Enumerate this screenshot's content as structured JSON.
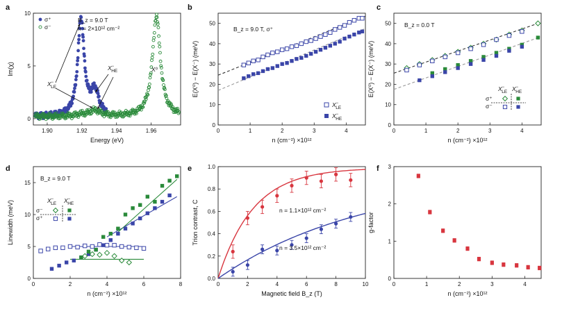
{
  "panel_labels": [
    "a",
    "b",
    "c",
    "d",
    "e",
    "f"
  ],
  "colors": {
    "blue": "#3a45a8",
    "green": "#2a8a3a",
    "red": "#d8363f",
    "gray": "#9a9a9a",
    "dkgreen": "#1f5f2c"
  },
  "chart_data": [
    {
      "id": "a",
      "type": "scatter",
      "xlabel": "Energy (eV)",
      "ylabel": "Im(χ)",
      "xlim": [
        1.892,
        1.977
      ],
      "ylim": [
        -0.6,
        10
      ],
      "xticks": [
        1.9,
        1.92,
        1.94,
        1.96
      ],
      "yticks": [
        0,
        5,
        10
      ],
      "tick_labels_x": [
        "1.90",
        "1.92",
        "1.94",
        "1.96"
      ],
      "tick_labels_y": [
        "0",
        "5",
        "10"
      ],
      "legend": [
        "σ⁺",
        "σ⁻"
      ],
      "annotations": [
        "B_z = 9.0 T",
        "n = 2×10¹² cm⁻²",
        "X⁻_LE",
        "X⁻_HE",
        "X⁰"
      ],
      "series": [
        {
          "name": "σ⁺",
          "color": "blue",
          "peaks": [
            {
              "x0": 1.9195,
              "a": 9.2,
              "g": 0.0022
            },
            {
              "x0": 1.9275,
              "a": 2.3,
              "g": 0.0028
            }
          ],
          "x_range": [
            1.893,
            1.934
          ]
        },
        {
          "name": "σ⁻",
          "color": "green",
          "peaks": [
            {
              "x0": 1.963,
              "a": 9.5,
              "g": 0.0028
            },
            {
              "x0": 1.9275,
              "a": 0.55,
              "g": 0.004
            },
            {
              "x0": 1.9195,
              "a": 0.15,
              "g": 0.003
            }
          ],
          "x_range": [
            1.893,
            1.976
          ]
        }
      ]
    },
    {
      "id": "b",
      "type": "scatter",
      "xlabel": "n (cm⁻²) ×10¹²",
      "ylabel": "E(X⁰) − E(X⁻) (meV)",
      "xlim": [
        0,
        4.6
      ],
      "ylim": [
        0,
        55
      ],
      "xticks": [
        0,
        1,
        2,
        3,
        4
      ],
      "yticks": [
        0,
        10,
        20,
        30,
        40,
        50
      ],
      "tick_labels_x": [
        "0",
        "1",
        "2",
        "3",
        "4"
      ],
      "tick_labels_y": [
        "0",
        "10",
        "20",
        "30",
        "40",
        "50"
      ],
      "annotations": [
        "B_z = 9.0 T, σ⁺"
      ],
      "legend": [
        "X⁻_LE",
        "X⁻_HE"
      ],
      "series": [
        {
          "name": "X⁻_LE",
          "marker": "open-square",
          "color": "blue",
          "x": [
            0.8,
            0.95,
            1.1,
            1.25,
            1.4,
            1.55,
            1.7,
            1.85,
            2.0,
            2.15,
            2.3,
            2.45,
            2.6,
            2.75,
            2.9,
            3.05,
            3.2,
            3.35,
            3.5,
            3.65,
            3.8,
            3.95,
            4.1,
            4.25,
            4.4,
            4.5
          ],
          "y": [
            29.5,
            30.5,
            31.5,
            32.0,
            33.5,
            34.5,
            35.5,
            36.0,
            37.0,
            37.5,
            38.5,
            39.0,
            40.0,
            41.0,
            41.5,
            42.5,
            43.5,
            44.5,
            45.5,
            47.0,
            48.0,
            49.0,
            50.5,
            51.5,
            52.5,
            52.5
          ]
        },
        {
          "name": "X⁻_HE",
          "marker": "filled-square",
          "color": "blue",
          "x": [
            0.8,
            0.95,
            1.1,
            1.25,
            1.4,
            1.55,
            1.7,
            1.85,
            2.0,
            2.15,
            2.3,
            2.45,
            2.6,
            2.75,
            2.9,
            3.05,
            3.2,
            3.35,
            3.5,
            3.65,
            3.8,
            3.95,
            4.1,
            4.25,
            4.4,
            4.5
          ],
          "y": [
            23.0,
            24.0,
            25.0,
            25.5,
            26.5,
            27.5,
            28.0,
            29.0,
            30.0,
            30.5,
            31.5,
            32.5,
            33.0,
            34.0,
            35.0,
            36.0,
            37.0,
            38.0,
            39.0,
            40.0,
            41.0,
            42.5,
            43.5,
            44.5,
            45.5,
            46.0
          ]
        }
      ],
      "fits": [
        {
          "color": "dark",
          "x": [
            0,
            4.6
          ],
          "y": [
            24.5,
            53.5
          ]
        },
        {
          "color": "gray",
          "x": [
            0,
            4.6
          ],
          "y": [
            17.0,
            47.5
          ]
        }
      ]
    },
    {
      "id": "c",
      "type": "scatter",
      "xlabel": "n (cm⁻²) ×10¹²",
      "ylabel": "E(X⁰) − E(X⁻) (meV)",
      "xlim": [
        0,
        4.6
      ],
      "ylim": [
        0,
        55
      ],
      "xticks": [
        0,
        1,
        2,
        3,
        4
      ],
      "yticks": [
        0,
        10,
        20,
        30,
        40,
        50
      ],
      "tick_labels_x": [
        "0",
        "1",
        "2",
        "3",
        "4"
      ],
      "tick_labels_y": [
        "0",
        "10",
        "20",
        "30",
        "40",
        "50"
      ],
      "annotations": [
        "B_z = 0.0 T"
      ],
      "legend_grid": {
        "cols": [
          "X⁻_LE",
          "X⁻_HE"
        ],
        "rows": [
          "σ⁺",
          "σ⁻"
        ]
      },
      "series": [
        {
          "name": "σ⁺ X⁻_LE",
          "marker": "open-diamond",
          "color": "green",
          "x": [
            0.4,
            0.8,
            1.2,
            1.6,
            2.0,
            2.4,
            2.8,
            3.2,
            3.6,
            4.0,
            4.5
          ],
          "y": [
            28.0,
            30.0,
            32.0,
            34.0,
            36.0,
            38.0,
            40.0,
            42.0,
            44.5,
            46.5,
            50.0
          ]
        },
        {
          "name": "σ⁻ X⁻_LE",
          "marker": "open-square",
          "color": "blue",
          "x": [
            0.4,
            0.8,
            1.2,
            1.6,
            2.0,
            2.4,
            2.8,
            3.2,
            3.6,
            4.0
          ],
          "y": [
            27.0,
            29.5,
            31.5,
            33.5,
            35.5,
            37.5,
            39.5,
            42.0,
            44.0,
            46.0
          ]
        },
        {
          "name": "σ⁺ X⁻_HE",
          "marker": "filled-square",
          "color": "green",
          "x": [
            1.2,
            1.6,
            2.0,
            2.4,
            2.8,
            3.2,
            3.6,
            4.0,
            4.5
          ],
          "y": [
            25.5,
            27.5,
            29.5,
            31.5,
            33.5,
            35.5,
            37.5,
            39.5,
            43.0
          ]
        },
        {
          "name": "σ⁻ X⁻_HE",
          "marker": "filled-square",
          "color": "blue",
          "x": [
            0.8,
            1.2,
            1.6,
            2.0,
            2.4,
            2.8,
            3.2,
            3.6,
            4.0
          ],
          "y": [
            22.0,
            24.0,
            26.0,
            28.0,
            30.0,
            32.0,
            34.0,
            36.5,
            38.5
          ]
        }
      ],
      "fits": [
        {
          "color": "dark",
          "x": [
            0,
            4.6
          ],
          "y": [
            25.5,
            50.5
          ]
        },
        {
          "color": "gray",
          "x": [
            0,
            4.6
          ],
          "y": [
            17.5,
            43.5
          ]
        }
      ]
    },
    {
      "id": "d",
      "type": "scatter",
      "xlabel": "n (cm⁻²) ×10¹²",
      "ylabel": "Linewidth (meV)",
      "xlim": [
        0,
        8
      ],
      "ylim": [
        0,
        17.5
      ],
      "xticks": [
        0,
        2,
        4,
        6,
        8
      ],
      "yticks": [
        0,
        5,
        10,
        15
      ],
      "tick_labels_x": [
        "0",
        "2",
        "4",
        "6",
        "8"
      ],
      "tick_labels_y": [
        "0",
        "5",
        "10",
        "15"
      ],
      "annotations": [
        "B_z = 9.0 T"
      ],
      "legend_grid": {
        "cols": [
          "X⁻_LE",
          "X⁻_HE"
        ],
        "rows": [
          "σ⁻",
          "σ⁺"
        ]
      },
      "series": [
        {
          "name": "σ⁺ X⁻_LE",
          "marker": "open-square",
          "color": "blue",
          "x": [
            0.4,
            0.8,
            1.2,
            1.6,
            2.0,
            2.4,
            2.8,
            3.2,
            3.6,
            4.0,
            4.4,
            4.8,
            5.2,
            5.6,
            6.0
          ],
          "y": [
            4.3,
            4.6,
            4.8,
            4.8,
            5.0,
            4.9,
            5.1,
            5.0,
            5.3,
            5.2,
            5.2,
            5.0,
            4.9,
            4.8,
            4.7
          ]
        },
        {
          "name": "σ⁺ X⁻_HE",
          "marker": "filled-square",
          "color": "blue",
          "x": [
            1.0,
            1.4,
            1.8,
            2.2,
            2.6,
            3.0,
            3.4,
            3.8,
            4.2,
            4.6,
            5.0,
            5.4,
            5.8,
            6.2,
            6.6,
            7.0,
            7.4
          ],
          "y": [
            1.5,
            2.0,
            2.5,
            2.8,
            3.3,
            3.8,
            4.5,
            5.2,
            6.0,
            7.0,
            7.8,
            8.6,
            9.4,
            10.2,
            11.0,
            12.0,
            13.0
          ]
        },
        {
          "name": "σ⁻ X⁻_LE",
          "marker": "open-diamond",
          "color": "green",
          "x": [
            2.8,
            3.2,
            3.6,
            4.0,
            4.4,
            4.8,
            5.2
          ],
          "y": [
            3.5,
            3.8,
            3.7,
            4.0,
            3.5,
            2.8,
            2.5
          ]
        },
        {
          "name": "σ⁻ X⁻_HE",
          "marker": "filled-square",
          "color": "green",
          "x": [
            2.6,
            3.0,
            3.4,
            3.8,
            4.2,
            4.6,
            5.0,
            5.4,
            5.8,
            6.2,
            6.6,
            7.0,
            7.4,
            7.8
          ],
          "y": [
            3.3,
            4.2,
            4.5,
            6.5,
            7.0,
            7.8,
            10.0,
            11.0,
            11.5,
            12.8,
            12.0,
            14.5,
            15.3,
            16.0
          ]
        }
      ],
      "fits": [
        {
          "color": "blue",
          "x": [
            2.0,
            6.0
          ],
          "y": [
            5.0,
            5.0
          ]
        },
        {
          "color": "blue",
          "x": [
            4.0,
            7.8
          ],
          "y": [
            6.5,
            12.8
          ]
        },
        {
          "color": "green",
          "x": [
            2.0,
            6.0
          ],
          "y": [
            3.0,
            3.0
          ]
        },
        {
          "color": "green",
          "x": [
            4.5,
            7.8
          ],
          "y": [
            7.0,
            15.5
          ]
        }
      ]
    },
    {
      "id": "e",
      "type": "scatter",
      "xlabel": "Magnetic field B_z (T)",
      "ylabel": "Trion contrast, C",
      "xlim": [
        0,
        10
      ],
      "ylim": [
        0,
        1.0
      ],
      "xticks": [
        0,
        2,
        4,
        6,
        8,
        10
      ],
      "yticks": [
        0,
        0.2,
        0.4,
        0.6,
        0.8,
        1.0
      ],
      "tick_labels_x": [
        "0",
        "2",
        "4",
        "6",
        "8",
        "10"
      ],
      "tick_labels_y": [
        "0.0",
        "0.2",
        "0.4",
        "0.6",
        "0.8",
        "1.0"
      ],
      "annotations": [
        "n = 1.1×10¹² cm⁻²",
        "n = 3.5×10¹² cm⁻²"
      ],
      "series": [
        {
          "name": "n = 1.1×10¹² cm⁻²",
          "color": "red",
          "x": [
            1,
            2,
            3,
            4,
            5,
            6,
            7,
            8,
            9
          ],
          "y": [
            0.24,
            0.54,
            0.64,
            0.74,
            0.83,
            0.9,
            0.87,
            0.93,
            0.88
          ],
          "err": [
            0.06,
            0.06,
            0.06,
            0.06,
            0.06,
            0.06,
            0.06,
            0.06,
            0.06
          ]
        },
        {
          "name": "n = 3.5×10¹² cm⁻²",
          "color": "blue",
          "x": [
            1,
            2,
            3,
            4,
            5,
            6,
            7,
            8,
            9
          ],
          "y": [
            0.06,
            0.12,
            0.26,
            0.25,
            0.3,
            0.36,
            0.44,
            0.49,
            0.55
          ],
          "err": [
            0.04,
            0.04,
            0.04,
            0.04,
            0.04,
            0.04,
            0.04,
            0.04,
            0.04
          ]
        }
      ],
      "fits": [
        {
          "color": "red",
          "fn": "saturating",
          "scale": 0.99,
          "rate": 0.42
        },
        {
          "color": "blue",
          "fn": "saturating",
          "scale": 0.92,
          "rate": 0.1
        }
      ]
    },
    {
      "id": "f",
      "type": "scatter",
      "xlabel": "n (cm⁻²) ×10¹²",
      "ylabel": "g-factor",
      "xlim": [
        0,
        4.5
      ],
      "ylim": [
        0,
        3.0
      ],
      "xticks": [
        0,
        1,
        2,
        3,
        4
      ],
      "yticks": [
        0,
        1,
        2,
        3
      ],
      "tick_labels_x": [
        "0",
        "1",
        "2",
        "3",
        "4"
      ],
      "tick_labels_y": [
        "0",
        "1",
        "2",
        "3"
      ],
      "series": [
        {
          "name": "g-factor",
          "color": "red",
          "x": [
            0.75,
            1.1,
            1.5,
            1.85,
            2.25,
            2.6,
            3.0,
            3.35,
            3.75,
            4.1,
            4.45
          ],
          "y": [
            2.75,
            1.78,
            1.28,
            1.02,
            0.8,
            0.52,
            0.42,
            0.37,
            0.35,
            0.3,
            0.28
          ],
          "err": [
            0.05,
            0.05,
            0.05,
            0.05,
            0.05,
            0.05,
            0.05,
            0.05,
            0.05,
            0.05,
            0.05
          ]
        }
      ]
    }
  ]
}
